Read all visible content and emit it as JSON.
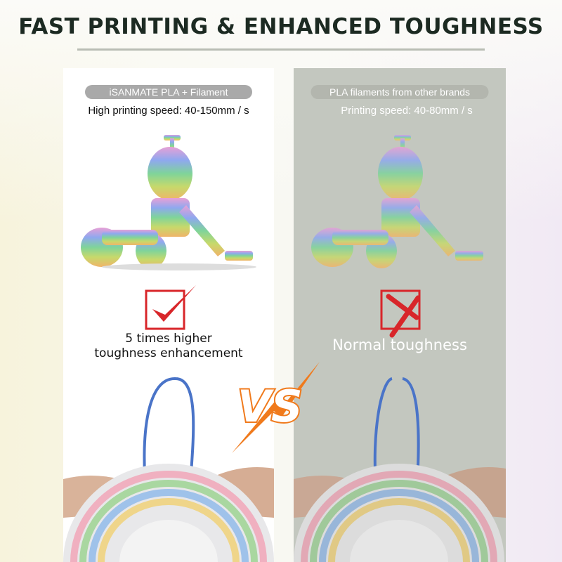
{
  "header": {
    "title": "FAST PRINTING & ENHANCED TOUGHNESS"
  },
  "left": {
    "badge": "iSANMATE PLA + Filament",
    "speed": "High printing speed: 40-150mm / s",
    "claim_line1": "5 times higher",
    "claim_line2": "toughness enhancement",
    "mark_icon": "check-icon"
  },
  "right": {
    "badge": "PLA filaments from other brands",
    "speed": "Printing speed: 40-80mm / s",
    "claim": "Normal toughness",
    "mark_icon": "cross-icon"
  },
  "vs": {
    "label": "VS"
  },
  "colors": {
    "accent_red": "#d8262a",
    "vs_orange": "#f07a1c",
    "right_panel": "#c3c7bf"
  }
}
